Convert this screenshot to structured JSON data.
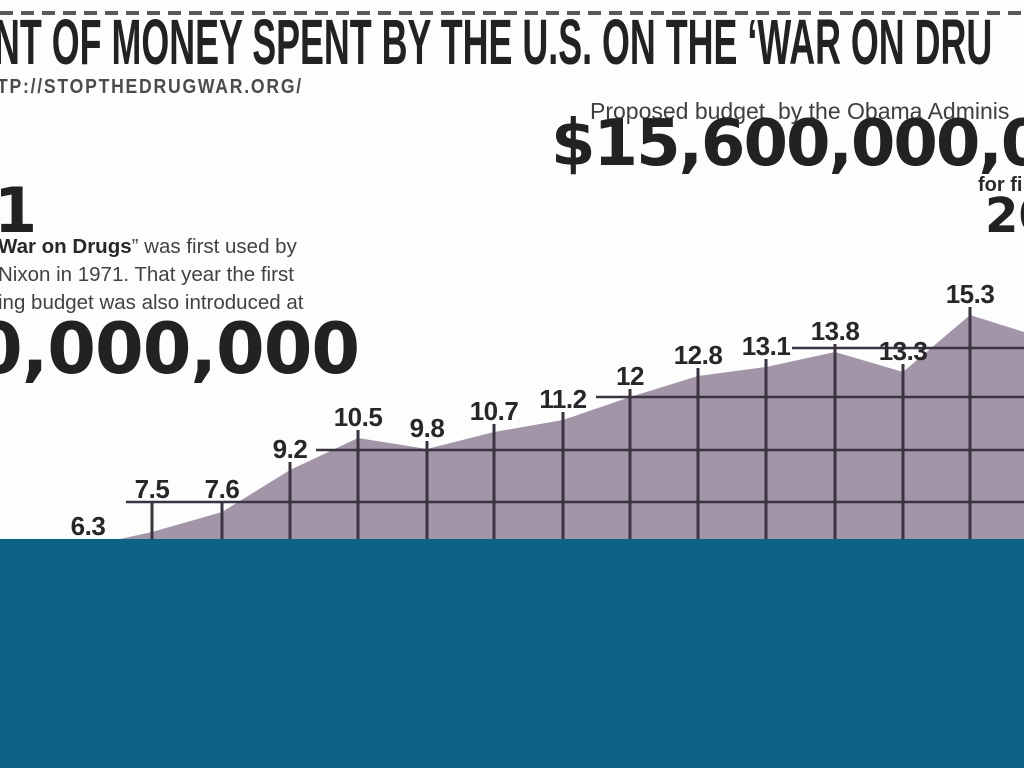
{
  "header": {
    "title_fragment": "NT OF MONEY SPENT BY THE U.S. ON THE ‘WAR ON DRU",
    "source_url_fragment": "TP://STOPTHEDRUGWAR.ORG/"
  },
  "proposed_budget": {
    "caption_fragment": "Proposed budget  by the Obama Adminis",
    "amount_fragment": "$15,600,000,0",
    "fiscal_note_fragment": "for fi",
    "year_fragment": "20"
  },
  "origin_note": {
    "big_digit_fragment": "1",
    "line1_bold_fragment": "War on Drugs",
    "line1_rest_fragment": "” was first used by",
    "line2": "Nixon in 1971. That year the first",
    "line3_fragment": "ing budget was also introduced at",
    "amount_fragment": "0,000,000"
  },
  "chart_data": {
    "type": "area",
    "values": [
      6.3,
      7.5,
      7.6,
      9.2,
      10.5,
      9.8,
      10.7,
      11.2,
      12,
      12.8,
      13.1,
      13.8,
      13.3,
      15.3
    ],
    "point_labels": [
      "6.3",
      "7.5",
      "7.6",
      "9.2",
      "10.5",
      "9.8",
      "10.7",
      "11.2",
      "12",
      "12.8",
      "13.1",
      "13.8",
      "13.3",
      "15.3"
    ],
    "grid": true,
    "legend_position": "none",
    "x_axis_visible": false,
    "note": "x-axis and series baseline hidden behind bottom overlay; series continues past right crop after 15.3",
    "area_color": "#a195a7",
    "grid_color": "#3a3440",
    "label_color": "#28262a"
  },
  "colors": {
    "ink": "#242122",
    "muted_ink": "#4b4b4d",
    "area": "#a195a7",
    "grid_line": "#3a3440",
    "overlay_teal": "#0d6385",
    "background": "#fdfdfd"
  }
}
